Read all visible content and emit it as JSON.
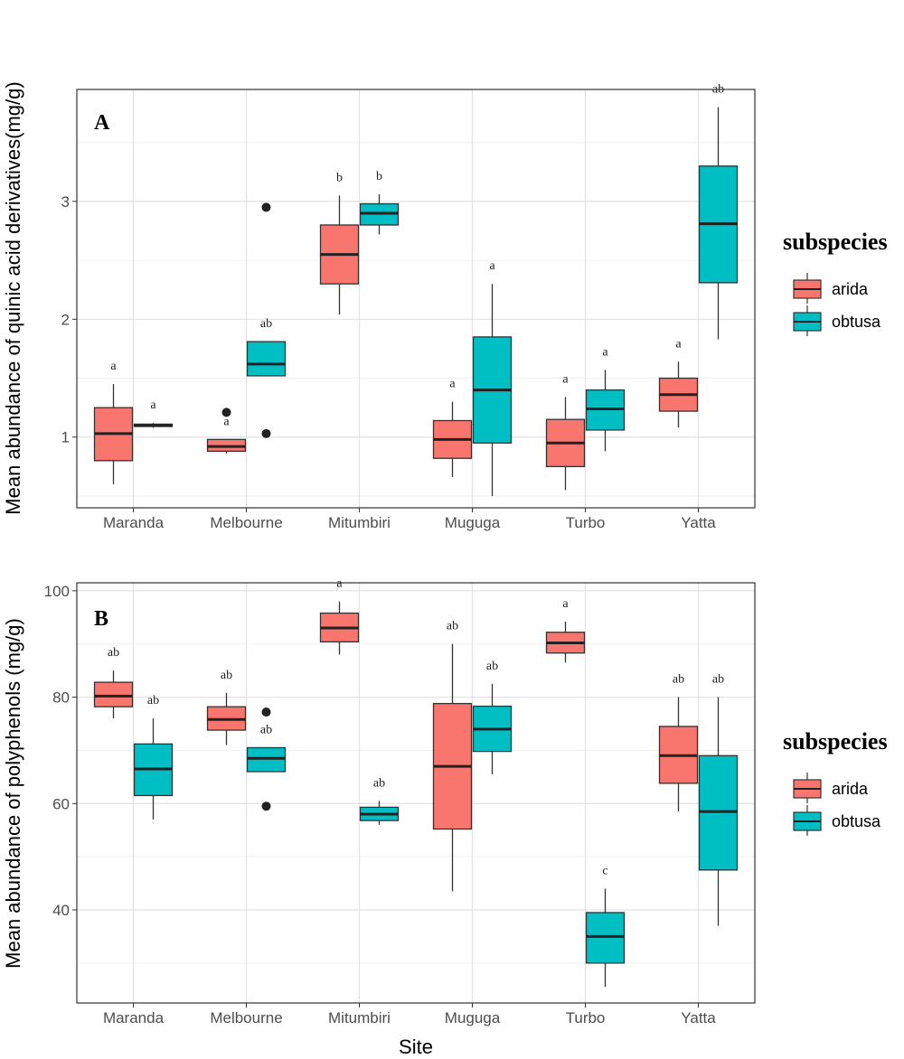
{
  "colors": {
    "arida": "#F8766D",
    "obtusa": "#00BFC4"
  },
  "legend": {
    "title": "subspecies",
    "items": [
      "arida",
      "obtusa"
    ]
  },
  "x_axis_label": "Site",
  "chart_data": [
    {
      "type": "boxplot",
      "panel_label": "A",
      "ylabel": "Mean abundance of quinic acid derivatives(mg/g)",
      "ylim": [
        0.4,
        3.95
      ],
      "yticks": [
        1,
        2,
        3
      ],
      "categories": [
        "Maranda",
        "Melbourne",
        "Mitumbiri",
        "Muguga",
        "Turbo",
        "Yatta"
      ],
      "series": [
        {
          "name": "arida",
          "boxes": [
            {
              "site": "Maranda",
              "min": 0.6,
              "q1": 0.8,
              "median": 1.03,
              "q3": 1.25,
              "max": 1.45,
              "outliers": [],
              "sig": "a"
            },
            {
              "site": "Melbourne",
              "min": 0.86,
              "q1": 0.88,
              "median": 0.92,
              "q3": 0.98,
              "max": 0.98,
              "outliers": [
                1.21
              ],
              "sig": "a"
            },
            {
              "site": "Mitumbiri",
              "min": 2.04,
              "q1": 2.3,
              "median": 2.55,
              "q3": 2.8,
              "max": 3.05,
              "outliers": [],
              "sig": "b"
            },
            {
              "site": "Muguga",
              "min": 0.66,
              "q1": 0.82,
              "median": 0.98,
              "q3": 1.14,
              "max": 1.3,
              "outliers": [],
              "sig": "a"
            },
            {
              "site": "Turbo",
              "min": 0.55,
              "q1": 0.75,
              "median": 0.95,
              "q3": 1.15,
              "max": 1.34,
              "outliers": [],
              "sig": "a"
            },
            {
              "site": "Yatta",
              "min": 1.08,
              "q1": 1.22,
              "median": 1.36,
              "q3": 1.5,
              "max": 1.64,
              "outliers": [],
              "sig": "a"
            }
          ]
        },
        {
          "name": "obtusa",
          "boxes": [
            {
              "site": "Maranda",
              "min": 1.08,
              "q1": 1.09,
              "median": 1.1,
              "q3": 1.11,
              "max": 1.12,
              "outliers": [],
              "sig": "a"
            },
            {
              "site": "Melbourne",
              "min": 1.52,
              "q1": 1.52,
              "median": 1.62,
              "q3": 1.81,
              "max": 1.81,
              "outliers": [
                2.95,
                1.03
              ],
              "sig": "ab"
            },
            {
              "site": "Mitumbiri",
              "min": 2.72,
              "q1": 2.8,
              "median": 2.9,
              "q3": 2.98,
              "max": 3.06,
              "outliers": [],
              "sig": "b"
            },
            {
              "site": "Muguga",
              "min": 0.5,
              "q1": 0.95,
              "median": 1.4,
              "q3": 1.85,
              "max": 2.3,
              "outliers": [],
              "sig": "a"
            },
            {
              "site": "Turbo",
              "min": 0.88,
              "q1": 1.06,
              "median": 1.24,
              "q3": 1.4,
              "max": 1.57,
              "outliers": [],
              "sig": "a"
            },
            {
              "site": "Yatta",
              "min": 1.83,
              "q1": 2.31,
              "median": 2.81,
              "q3": 3.3,
              "max": 3.8,
              "outliers": [],
              "sig": "ab"
            }
          ]
        }
      ]
    },
    {
      "type": "boxplot",
      "panel_label": "B",
      "ylabel": "Mean abundance of polyphenols (mg/g)",
      "ylim": [
        22.5,
        101.5
      ],
      "yticks": [
        40,
        60,
        80,
        100
      ],
      "categories": [
        "Maranda",
        "Melbourne",
        "Mitumbiri",
        "Muguga",
        "Turbo",
        "Yatta"
      ],
      "series": [
        {
          "name": "arida",
          "boxes": [
            {
              "site": "Maranda",
              "min": 76,
              "q1": 78.2,
              "median": 80.2,
              "q3": 82.8,
              "max": 85,
              "outliers": [],
              "sig": "ab"
            },
            {
              "site": "Melbourne",
              "min": 71,
              "q1": 73.8,
              "median": 75.8,
              "q3": 78.2,
              "max": 80.8,
              "outliers": [],
              "sig": "ab"
            },
            {
              "site": "Mitumbiri",
              "min": 88,
              "q1": 90.4,
              "median": 93,
              "q3": 95.8,
              "max": 98,
              "outliers": [],
              "sig": "a"
            },
            {
              "site": "Muguga",
              "min": 43.5,
              "q1": 55.2,
              "median": 67,
              "q3": 78.8,
              "max": 90,
              "outliers": [],
              "sig": "ab"
            },
            {
              "site": "Turbo",
              "min": 86.5,
              "q1": 88.3,
              "median": 90.2,
              "q3": 92.2,
              "max": 94.2,
              "outliers": [],
              "sig": "a"
            },
            {
              "site": "Yatta",
              "min": 58.5,
              "q1": 63.8,
              "median": 69,
              "q3": 74.5,
              "max": 80,
              "outliers": [],
              "sig": "ab"
            }
          ]
        },
        {
          "name": "obtusa",
          "boxes": [
            {
              "site": "Maranda",
              "min": 57,
              "q1": 61.5,
              "median": 66.5,
              "q3": 71.2,
              "max": 76,
              "outliers": [],
              "sig": "ab"
            },
            {
              "site": "Melbourne",
              "min": 66,
              "q1": 66,
              "median": 68.5,
              "q3": 70.5,
              "max": 70.5,
              "outliers": [
                77.2,
                59.5
              ],
              "sig": "ab"
            },
            {
              "site": "Mitumbiri",
              "min": 56,
              "q1": 56.8,
              "median": 58,
              "q3": 59.3,
              "max": 60.5,
              "outliers": [],
              "sig": "ab"
            },
            {
              "site": "Muguga",
              "min": 65.5,
              "q1": 69.8,
              "median": 74,
              "q3": 78.3,
              "max": 82.5,
              "outliers": [],
              "sig": "ab"
            },
            {
              "site": "Turbo",
              "min": 25.5,
              "q1": 30,
              "median": 35,
              "q3": 39.5,
              "max": 44,
              "outliers": [],
              "sig": "c"
            },
            {
              "site": "Yatta",
              "min": 37,
              "q1": 47.5,
              "median": 58.5,
              "q3": 69,
              "max": 80,
              "outliers": [],
              "sig": "ab"
            }
          ]
        }
      ]
    }
  ]
}
